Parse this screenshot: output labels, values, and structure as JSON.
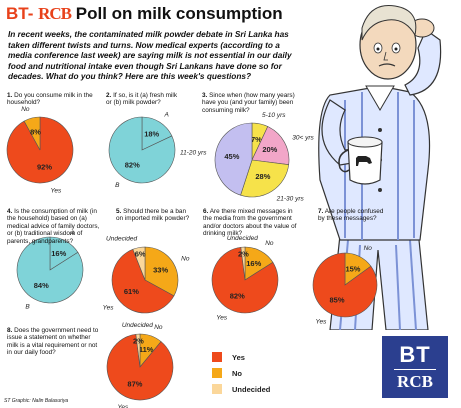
{
  "header": {
    "prefix": "BT-",
    "logo": "RCB",
    "title": "Poll on milk consumption"
  },
  "intro": "In recent weeks, the contaminated milk powder debate in Sri Lanka has taken different twists and turns. Now medical experts (according to a media conference last week) are saying milk is not essential in our daily food and nutritional intake even though Sri Lankans have done so for decades. What do you think? Here are this week's questions?",
  "questions": [
    {
      "num": "1.",
      "text": "Do you consume milk in the household?"
    },
    {
      "num": "2.",
      "text": "If so, is it (a) fresh milk or (b) milk powder?"
    },
    {
      "num": "3.",
      "text": "Since when (how many years) have you (and your family) been consuming milk?"
    },
    {
      "num": "4.",
      "text": "Is the consumption of milk (in the household) based on (a) medical advice of family doctors, or (b) traditional wisdom of parents, grandparents?"
    },
    {
      "num": "5.",
      "text": "Should there be a ban on imported milk powder?"
    },
    {
      "num": "6.",
      "text": "Are there mixed messages in the media from the government and/or doctors about the value of drinking milk?"
    },
    {
      "num": "7.",
      "text": "Are people confused by these messages?"
    },
    {
      "num": "8.",
      "text": "Does the government need to issue a statement on whether milk is a vital requirement or not in our daily food?"
    }
  ],
  "legend": [
    {
      "label": "Yes",
      "color": "#ee4a1c"
    },
    {
      "label": "No",
      "color": "#f5a818"
    },
    {
      "label": "Undecided",
      "color": "#fbd79a"
    }
  ],
  "brand": {
    "top": "BT",
    "bottom": "RCB"
  },
  "credit": "ST Graphic: Nalin Balasuriya",
  "colors": {
    "yes": "#ee4a1c",
    "no": "#f5a818",
    "undecided": "#fbd79a",
    "a": "#7fd3d8",
    "b": "#7fd3d8",
    "pink": "#f2a6c8",
    "lavender": "#c3bff0",
    "yellow": "#f6e24a",
    "header": "#e8421b"
  },
  "chart_data": [
    {
      "type": "pie",
      "title": "1. Do you consume milk in the household?",
      "slices": [
        {
          "label": "Yes",
          "value": 92
        },
        {
          "label": "No",
          "value": 8
        }
      ]
    },
    {
      "type": "pie",
      "title": "2. If so, is it (a) fresh milk or (b) milk powder?",
      "slices": [
        {
          "label": "A",
          "value": 18
        },
        {
          "label": "B",
          "value": 82
        }
      ]
    },
    {
      "type": "pie",
      "title": "3. Since when (how many years) have you (and your family) been consuming milk?",
      "slices": [
        {
          "label": "5-10 yrs",
          "value": 7
        },
        {
          "label": "30< yrs",
          "value": 20
        },
        {
          "label": "21-30 yrs",
          "value": 28
        },
        {
          "label": "11-20 yrs",
          "value": 45
        }
      ]
    },
    {
      "type": "pie",
      "title": "4. Is the consumption of milk (in the household) based on (a) medical advice of family doctors, or (b) traditional wisdom of parents, grandparents?",
      "slices": [
        {
          "label": "A",
          "value": 16
        },
        {
          "label": "B",
          "value": 84
        }
      ]
    },
    {
      "type": "pie",
      "title": "5. Should there be a ban on imported milk powder?",
      "slices": [
        {
          "label": "No",
          "value": 33
        },
        {
          "label": "Yes",
          "value": 61
        },
        {
          "label": "Undecided",
          "value": 6
        }
      ]
    },
    {
      "type": "pie",
      "title": "6. Are there mixed messages in the media from the government and/or doctors about the value of drinking milk?",
      "slices": [
        {
          "label": "No",
          "value": 16
        },
        {
          "label": "Yes",
          "value": 82
        },
        {
          "label": "Undecided",
          "value": 2
        }
      ]
    },
    {
      "type": "pie",
      "title": "7. Are people confused by these messages?",
      "slices": [
        {
          "label": "No",
          "value": 15
        },
        {
          "label": "Yes",
          "value": 85
        }
      ]
    },
    {
      "type": "pie",
      "title": "8. Does the government need to issue a statement on whether milk is a vital requirement or not in our daily food?",
      "slices": [
        {
          "label": "No",
          "value": 11
        },
        {
          "label": "Yes",
          "value": 87
        },
        {
          "label": "Undecided",
          "value": 2
        }
      ]
    }
  ]
}
